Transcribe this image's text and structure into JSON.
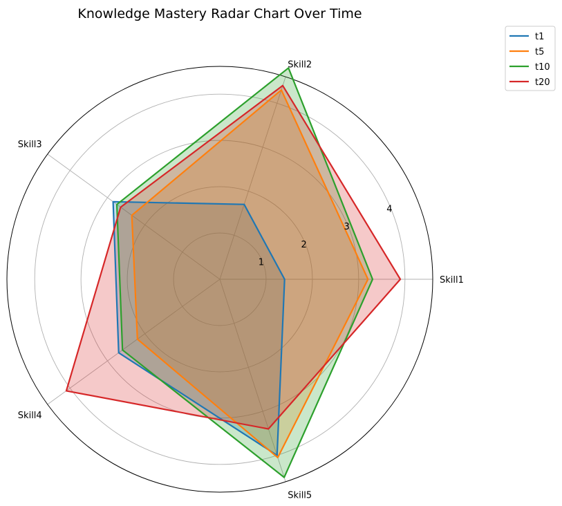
{
  "chart_data": {
    "type": "radar",
    "title": "Knowledge Mastery Radar Chart Over Time",
    "axes": [
      "Skill1",
      "Skill2",
      "Skill3",
      "Skill4",
      "Skill5"
    ],
    "r_ticks": [
      1,
      2,
      3,
      4
    ],
    "r_max": 4.6,
    "grid": true,
    "legend_position": "top-right",
    "series": [
      {
        "name": "t1",
        "color": "#1f77b4",
        "values": [
          1.4,
          1.7,
          2.85,
          2.7,
          4.0
        ]
      },
      {
        "name": "t5",
        "color": "#ff7f0e",
        "values": [
          3.2,
          4.3,
          2.35,
          2.2,
          4.05
        ]
      },
      {
        "name": "t10",
        "color": "#2ca02c",
        "values": [
          3.3,
          4.8,
          2.75,
          2.6,
          4.5
        ]
      },
      {
        "name": "t20",
        "color": "#d62728",
        "values": [
          3.9,
          4.4,
          2.65,
          4.1,
          3.4
        ]
      }
    ]
  }
}
